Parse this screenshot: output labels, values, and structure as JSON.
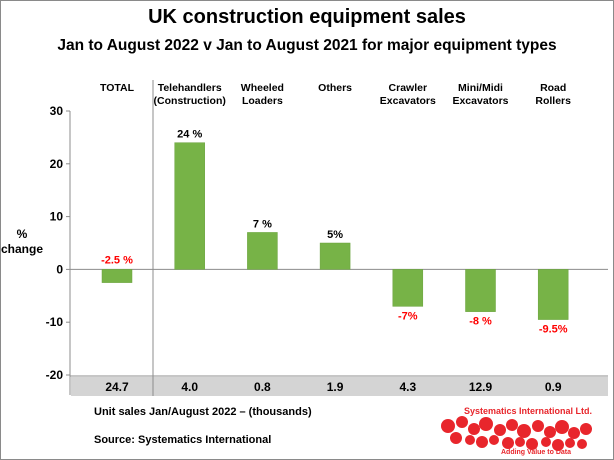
{
  "chart_data": {
    "type": "bar",
    "title": "UK construction equipment sales",
    "subtitle": "Jan to August 2022  v  Jan to August 2021 for major equipment types",
    "ylabel": "% change",
    "ylabel_lines": [
      "%",
      "change"
    ],
    "ylim": [
      -20,
      30
    ],
    "yticks": [
      30,
      20,
      10,
      0,
      -10,
      -20
    ],
    "ytick_labels": [
      "30",
      "20",
      "10",
      "0",
      "-10",
      "-20"
    ],
    "grid": false,
    "categories": [
      {
        "lines": [
          "TOTAL"
        ]
      },
      {
        "lines": [
          "Telehandlers",
          "(Construction)"
        ]
      },
      {
        "lines": [
          "Wheeled",
          "Loaders"
        ]
      },
      {
        "lines": [
          "Others"
        ]
      },
      {
        "lines": [
          "Crawler",
          "Excavators"
        ]
      },
      {
        "lines": [
          "Mini/Midi",
          "Excavators"
        ]
      },
      {
        "lines": [
          "Road",
          "Rollers"
        ]
      }
    ],
    "values": [
      -2.5,
      24,
      7,
      5,
      -7,
      -8,
      -9.5
    ],
    "data_labels": [
      "-2.5 %",
      "24 %",
      "7 %",
      "5%",
      "-7%",
      "-8 %",
      "-9.5%"
    ],
    "unit_sales": [
      "24.7",
      "4.0",
      "0.8",
      "1.9",
      "4.3",
      "12.9",
      "0.9"
    ],
    "colors": {
      "bar": "#77b347",
      "bar_edge": "#6aa23d",
      "positive_label": "#000000",
      "negative_label": "#ff0000",
      "table_band": "#d4d4d4",
      "axis": "#8c8c8c"
    }
  },
  "footer": {
    "unit_note": "Unit sales Jan/August 2022 –  (thousands)",
    "source": "Source: Systematics International"
  },
  "logo": {
    "name": "Systematics International Ltd.",
    "tagline": "Adding Value to Data",
    "color": "#e8262c"
  }
}
